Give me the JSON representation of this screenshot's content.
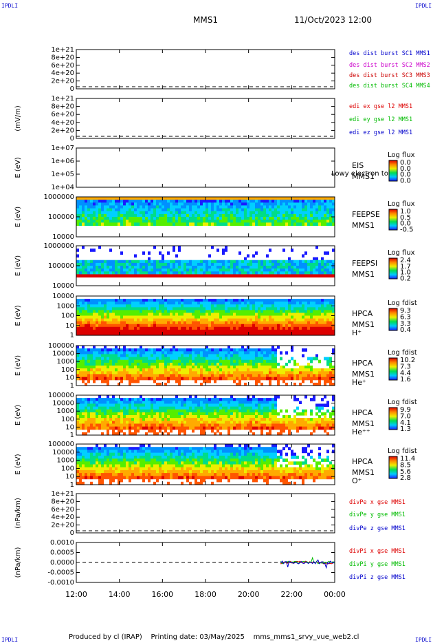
{
  "corner_tag": "IPDLI",
  "header": {
    "spacecraft": "MMS1",
    "datetime": "11/Oct/2023 12:00"
  },
  "footer": {
    "produced_by": "Produced by  cl (IRAP)",
    "printing_date": "Printing date: 03/May/2025",
    "script_name": "mms_mms1_srvy_vue_web2.cl"
  },
  "colors": {
    "mms1": "#0000cc",
    "mms2": "#cc00cc",
    "mms3": "#cc0000",
    "mms4": "#00bb00",
    "x": "#dd0000",
    "y": "#00bb00",
    "z": "#0000cc",
    "baseline": "#000000"
  },
  "chart_data": {
    "type": "multi-panel",
    "x_axis": {
      "ticks": [
        "12:00",
        "14:00",
        "16:00",
        "18:00",
        "20:00",
        "22:00",
        "00:00"
      ],
      "range_hours": [
        12,
        24
      ]
    },
    "panels": [
      {
        "id": "p1",
        "type": "line",
        "ylabel": "",
        "yticks": [
          "0",
          "2e+20",
          "4e+20",
          "6e+20",
          "8e+20",
          "1e+21"
        ],
        "legend": [
          {
            "label": "des dist burst SC1 MMS1",
            "color": "mms1"
          },
          {
            "label": "des dist burst SC2 MMS2",
            "color": "mms2"
          },
          {
            "label": "des dist burst SC3 MMS3",
            "color": "mms3"
          },
          {
            "label": "des dist burst SC4 MMS4",
            "color": "mms4"
          }
        ]
      },
      {
        "id": "p2",
        "type": "line",
        "ylabel": "(mV/m)",
        "yticks": [
          "0",
          "2e+20",
          "4e+20",
          "6e+20",
          "8e+20",
          "1e+21"
        ],
        "legend": [
          {
            "label": "edi ex gse l2 MMS1",
            "color": "x"
          },
          {
            "label": "edi ey gse l2 MMS1",
            "color": "y"
          },
          {
            "label": "edi ez gse l2 MMS1",
            "color": "z"
          }
        ]
      },
      {
        "id": "p3",
        "type": "spectrogram",
        "ylabel": "E (eV)",
        "yticks": [
          "1e+04",
          "1e+05",
          "1e+06",
          "1e+07"
        ],
        "labels": [
          "EIS",
          "MMS1"
        ],
        "overlay_text": "Lowy electron to",
        "colorbar": {
          "title": "Log flux",
          "ticks": [
            "0.0",
            "0.0",
            "0.0",
            "0.0"
          ]
        }
      },
      {
        "id": "p4",
        "type": "spectrogram",
        "ylabel": "E (eV)",
        "yticks": [
          "10000",
          "100000",
          "1000000"
        ],
        "labels": [
          "FEEPSE",
          "MMS1"
        ],
        "colorbar": {
          "title": "Log flux",
          "ticks": [
            "1.0",
            "0.5",
            "0.0",
            "-0.5"
          ]
        }
      },
      {
        "id": "p5",
        "type": "spectrogram",
        "ylabel": "E (eV)",
        "yticks": [
          "10000",
          "100000",
          "1000000"
        ],
        "labels": [
          "FEEPSI",
          "MMS1"
        ],
        "colorbar": {
          "title": "Log flux",
          "ticks": [
            "2.4",
            "1.7",
            "1.0",
            "0.2"
          ]
        }
      },
      {
        "id": "p6",
        "type": "spectrogram",
        "ylabel": "E (eV)",
        "yticks": [
          "1",
          "10",
          "100",
          "1000",
          "10000"
        ],
        "labels": [
          "HPCA",
          "MMS1",
          "H⁺"
        ],
        "colorbar": {
          "title": "Log fdist",
          "ticks": [
            "9.3",
            "6.3",
            "3.3",
            "0.4"
          ]
        }
      },
      {
        "id": "p7",
        "type": "spectrogram",
        "ylabel": "E (eV)",
        "yticks": [
          "1",
          "10",
          "100",
          "1000",
          "10000",
          "100000"
        ],
        "labels": [
          "HPCA",
          "MMS1",
          "He⁺"
        ],
        "colorbar": {
          "title": "Log fdist",
          "ticks": [
            "10.2",
            "7.3",
            "4.4",
            "1.6"
          ]
        }
      },
      {
        "id": "p8",
        "type": "spectrogram",
        "ylabel": "E (eV)",
        "yticks": [
          "1",
          "10",
          "100",
          "1000",
          "10000",
          "100000"
        ],
        "labels": [
          "HPCA",
          "MMS1",
          "He⁺⁺"
        ],
        "colorbar": {
          "title": "Log fdist",
          "ticks": [
            "9.9",
            "7.0",
            "4.1",
            "1.3"
          ]
        }
      },
      {
        "id": "p9",
        "type": "spectrogram",
        "ylabel": "E (eV)",
        "yticks": [
          "1",
          "10",
          "100",
          "1000",
          "10000",
          "100000"
        ],
        "labels": [
          "HPCA",
          "MMS1",
          "O⁺"
        ],
        "colorbar": {
          "title": "Log fdist",
          "ticks": [
            "11.4",
            "8.5",
            "5.6",
            "2.8"
          ]
        }
      },
      {
        "id": "p10",
        "type": "line",
        "ylabel": "(nPa/km)",
        "yticks": [
          "0",
          "2e+20",
          "4e+20",
          "6e+20",
          "8e+20",
          "1e+21"
        ],
        "legend": [
          {
            "label": "divPe x gse MMS1",
            "color": "x"
          },
          {
            "label": "divPe y gse MMS1",
            "color": "y"
          },
          {
            "label": "divPe z gse MMS1",
            "color": "z"
          }
        ]
      },
      {
        "id": "p11",
        "type": "line",
        "ylabel": "(nPa/km)",
        "yticks": [
          "-0.0010",
          "-0.0005",
          "0.0000",
          "0.0005",
          "0.0010"
        ],
        "legend": [
          {
            "label": "divPi x gse MMS1",
            "color": "x"
          },
          {
            "label": "divPi y gse MMS1",
            "color": "y"
          },
          {
            "label": "divPi z gse MMS1",
            "color": "z"
          }
        ],
        "series_note_data_start_hour": 21.5
      }
    ]
  }
}
